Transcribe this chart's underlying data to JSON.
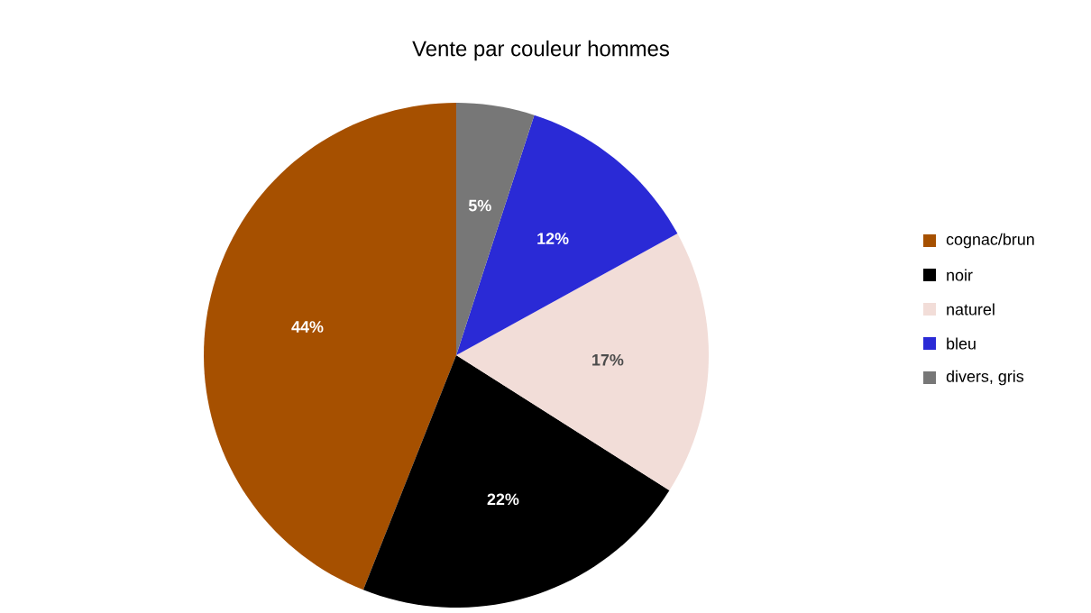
{
  "chart_data": {
    "type": "pie",
    "title": "Vente par couleur hommes",
    "categories": [
      "cognac/brun",
      "noir",
      "naturel",
      "bleu",
      "divers, gris"
    ],
    "values": [
      44,
      22,
      17,
      12,
      5
    ],
    "colors": [
      "#a65000",
      "#000000",
      "#f2ddd8",
      "#2a2ad6",
      "#777777"
    ],
    "value_labels": [
      "44%",
      "22%",
      "17%",
      "12%",
      "5%"
    ],
    "legend": "right"
  }
}
